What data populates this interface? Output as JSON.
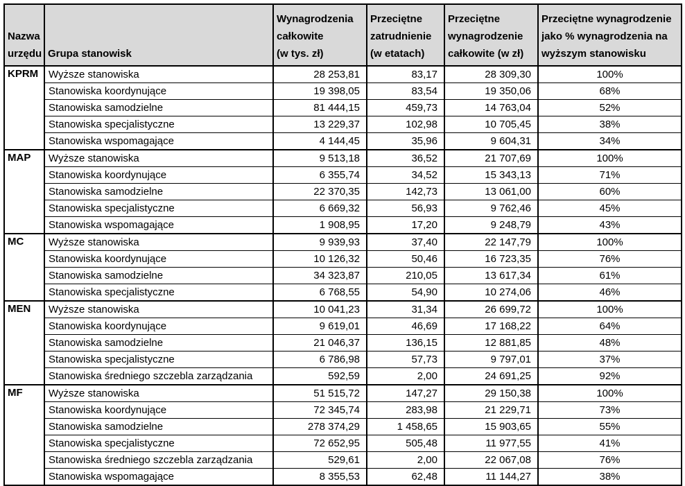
{
  "table": {
    "headers": {
      "office": "Nazwa\nurzędu",
      "group": "Grupa stanowisk",
      "total": "Wynagrodzenia\ncałkowite\n(w tys. zł)",
      "fte": "Przeciętne\nzatrudnienie\n(w etatach)",
      "avg": "Przeciętne\nwynagrodzenie\ncałkowite (w zł)",
      "pct": "Przeciętne wynagrodzenie\njako % wynagrodzenia na\nwyższym stanowisku"
    },
    "header_bg_color": "#d9d9d9",
    "border_color": "#000000",
    "sections": [
      {
        "office": "KPRM",
        "rows": [
          {
            "group": "Wyższe stanowiska",
            "total": "28 253,81",
            "fte": "83,17",
            "avg": "28 309,30",
            "pct": "100%"
          },
          {
            "group": "Stanowiska koordynujące",
            "total": "19 398,05",
            "fte": "83,54",
            "avg": "19 350,06",
            "pct": "68%"
          },
          {
            "group": "Stanowiska samodzielne",
            "total": "81 444,15",
            "fte": "459,73",
            "avg": "14 763,04",
            "pct": "52%"
          },
          {
            "group": "Stanowiska specjalistyczne",
            "total": "13 229,37",
            "fte": "102,98",
            "avg": "10 705,45",
            "pct": "38%"
          },
          {
            "group": "Stanowiska wspomagające",
            "total": "4 144,45",
            "fte": "35,96",
            "avg": "9 604,31",
            "pct": "34%"
          }
        ]
      },
      {
        "office": "MAP",
        "rows": [
          {
            "group": "Wyższe stanowiska",
            "total": "9 513,18",
            "fte": "36,52",
            "avg": "21 707,69",
            "pct": "100%"
          },
          {
            "group": "Stanowiska koordynujące",
            "total": "6 355,74",
            "fte": "34,52",
            "avg": "15 343,13",
            "pct": "71%"
          },
          {
            "group": "Stanowiska samodzielne",
            "total": "22 370,35",
            "fte": "142,73",
            "avg": "13 061,00",
            "pct": "60%"
          },
          {
            "group": "Stanowiska specjalistyczne",
            "total": "6 669,32",
            "fte": "56,93",
            "avg": "9 762,46",
            "pct": "45%"
          },
          {
            "group": "Stanowiska wspomagające",
            "total": "1 908,95",
            "fte": "17,20",
            "avg": "9 248,79",
            "pct": "43%"
          }
        ]
      },
      {
        "office": "MC",
        "rows": [
          {
            "group": "Wyższe stanowiska",
            "total": "9 939,93",
            "fte": "37,40",
            "avg": "22 147,79",
            "pct": "100%"
          },
          {
            "group": "Stanowiska koordynujące",
            "total": "10 126,32",
            "fte": "50,46",
            "avg": "16 723,35",
            "pct": "76%"
          },
          {
            "group": "Stanowiska samodzielne",
            "total": "34 323,87",
            "fte": "210,05",
            "avg": "13 617,34",
            "pct": "61%"
          },
          {
            "group": "Stanowiska specjalistyczne",
            "total": "6 768,55",
            "fte": "54,90",
            "avg": "10 274,06",
            "pct": "46%"
          }
        ]
      },
      {
        "office": "MEN",
        "rows": [
          {
            "group": "Wyższe stanowiska",
            "total": "10 041,23",
            "fte": "31,34",
            "avg": "26 699,72",
            "pct": "100%"
          },
          {
            "group": "Stanowiska koordynujące",
            "total": "9 619,01",
            "fte": "46,69",
            "avg": "17 168,22",
            "pct": "64%"
          },
          {
            "group": "Stanowiska samodzielne",
            "total": "21 046,37",
            "fte": "136,15",
            "avg": "12 881,85",
            "pct": "48%"
          },
          {
            "group": "Stanowiska specjalistyczne",
            "total": "6 786,98",
            "fte": "57,73",
            "avg": "9 797,01",
            "pct": "37%"
          },
          {
            "group": "Stanowiska średniego szczebla zarządzania",
            "total": "592,59",
            "fte": "2,00",
            "avg": "24 691,25",
            "pct": "92%"
          }
        ]
      },
      {
        "office": "MF",
        "rows": [
          {
            "group": "Wyższe stanowiska",
            "total": "51 515,72",
            "fte": "147,27",
            "avg": "29 150,38",
            "pct": "100%"
          },
          {
            "group": "Stanowiska koordynujące",
            "total": "72 345,74",
            "fte": "283,98",
            "avg": "21 229,71",
            "pct": "73%"
          },
          {
            "group": "Stanowiska samodzielne",
            "total": "278 374,29",
            "fte": "1 458,65",
            "avg": "15 903,65",
            "pct": "55%"
          },
          {
            "group": "Stanowiska specjalistyczne",
            "total": "72 652,95",
            "fte": "505,48",
            "avg": "11 977,55",
            "pct": "41%"
          },
          {
            "group": "Stanowiska średniego szczebla zarządzania",
            "total": "529,61",
            "fte": "2,00",
            "avg": "22 067,08",
            "pct": "76%"
          },
          {
            "group": "Stanowiska wspomagające",
            "total": "8 355,53",
            "fte": "62,48",
            "avg": "11 144,27",
            "pct": "38%"
          }
        ]
      }
    ]
  }
}
